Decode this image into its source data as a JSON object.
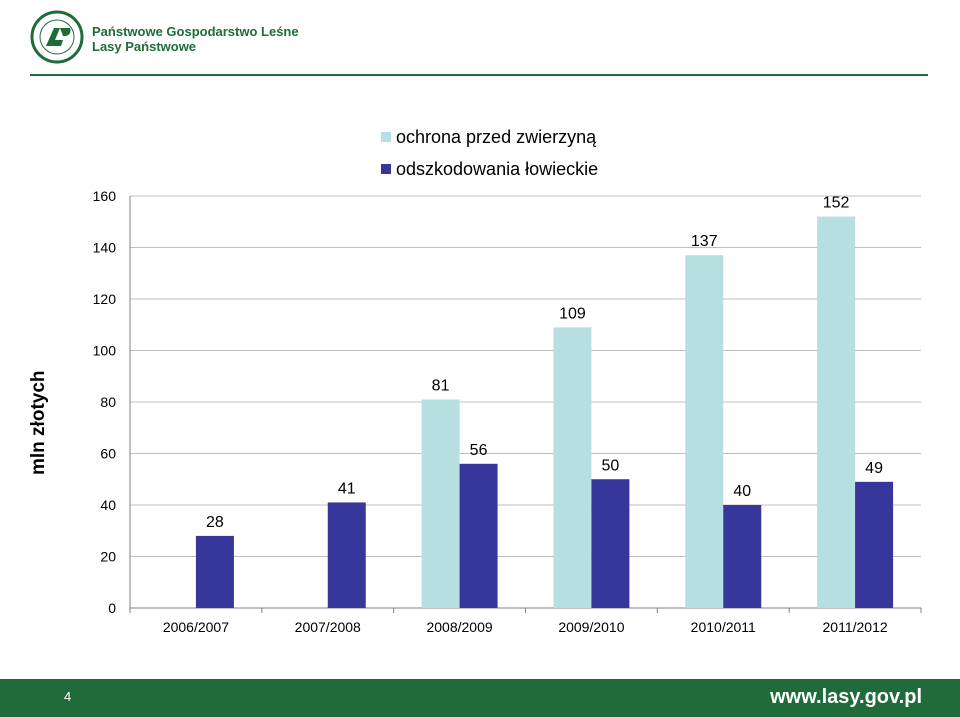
{
  "header": {
    "org_line1": "Państwowe Gospodarstwo Leśne",
    "org_line2": "Lasy Państwowe",
    "logo_text": "LASY PAŃSTWOWE",
    "logo_icon": "lp-logo-icon",
    "brand_color": "#1f6b3a"
  },
  "chart_data": {
    "type": "bar",
    "categories": [
      "2006/2007",
      "2007/2008",
      "2008/2009",
      "2009/2010",
      "2010/2011",
      "2011/2012"
    ],
    "series": [
      {
        "name": "ochrona przed zwierzyną",
        "color": "#b7dfe2",
        "values": [
          null,
          null,
          81,
          109,
          137,
          152
        ]
      },
      {
        "name": "odszkodowania łowieckie",
        "color": "#36369b",
        "values": [
          28,
          41,
          56,
          50,
          40,
          49
        ]
      }
    ],
    "title": "",
    "xlabel": "",
    "ylabel": "mln złotych",
    "ylim": [
      0,
      160
    ],
    "yticks": [
      0,
      20,
      40,
      60,
      80,
      100,
      120,
      140,
      160
    ],
    "grid": true,
    "legend": "top-center",
    "data_labels": true
  },
  "footer": {
    "page_number": "4",
    "website": "www.lasy.gov.pl"
  }
}
